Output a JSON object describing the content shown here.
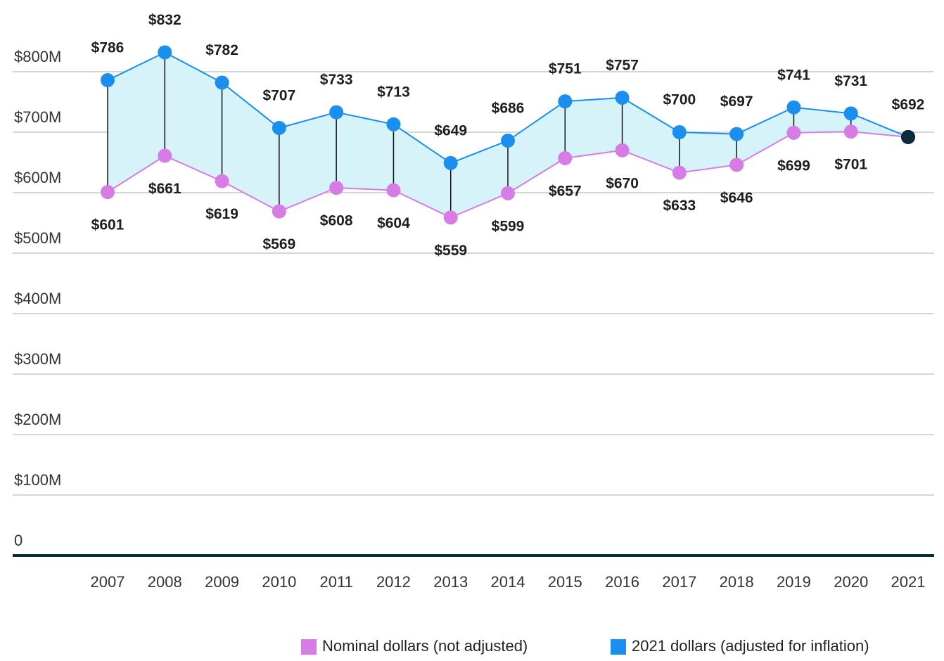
{
  "chart_data": {
    "type": "line",
    "x": [
      2007,
      2008,
      2009,
      2010,
      2011,
      2012,
      2013,
      2014,
      2015,
      2016,
      2017,
      2018,
      2019,
      2020,
      2021
    ],
    "series": [
      {
        "name": "Nominal dollars (not adjusted)",
        "color": "#d77be6",
        "values": [
          601,
          661,
          619,
          569,
          608,
          604,
          559,
          599,
          657,
          670,
          633,
          646,
          699,
          701,
          692
        ],
        "value_labels": [
          "$601",
          "$661",
          "$619",
          "$569",
          "$608",
          "$604",
          "$559",
          "$599",
          "$657",
          "$670",
          "$633",
          "$646",
          "$699",
          "$701",
          null
        ]
      },
      {
        "name": "2021 dollars (adjusted for inflation)",
        "color": "#1a8fef",
        "values": [
          786,
          832,
          782,
          707,
          733,
          713,
          649,
          686,
          751,
          757,
          700,
          697,
          741,
          731,
          692
        ],
        "value_labels": [
          "$786",
          "$832",
          "$782",
          "$707",
          "$733",
          "$713",
          "$649",
          "$686",
          "$751",
          "$757",
          "$700",
          "$697",
          "$741",
          "$731",
          "$692"
        ]
      }
    ],
    "band_color": "#d6f3f9",
    "overlap_color": "#0d2b3a",
    "ylim": [
      0,
      900
    ],
    "yticks": [
      0,
      {
        "value": 100,
        "label": "$100M"
      },
      {
        "value": 200,
        "label": "$200M"
      },
      {
        "value": 300,
        "label": "$300M"
      },
      {
        "value": 400,
        "label": "$400M"
      },
      {
        "value": 500,
        "label": "$500M"
      },
      {
        "value": 600,
        "label": "$600M"
      },
      {
        "value": 700,
        "label": "$700M"
      },
      {
        "value": 800,
        "label": "$800M"
      }
    ],
    "grid": true,
    "legend": "bottom-right"
  }
}
